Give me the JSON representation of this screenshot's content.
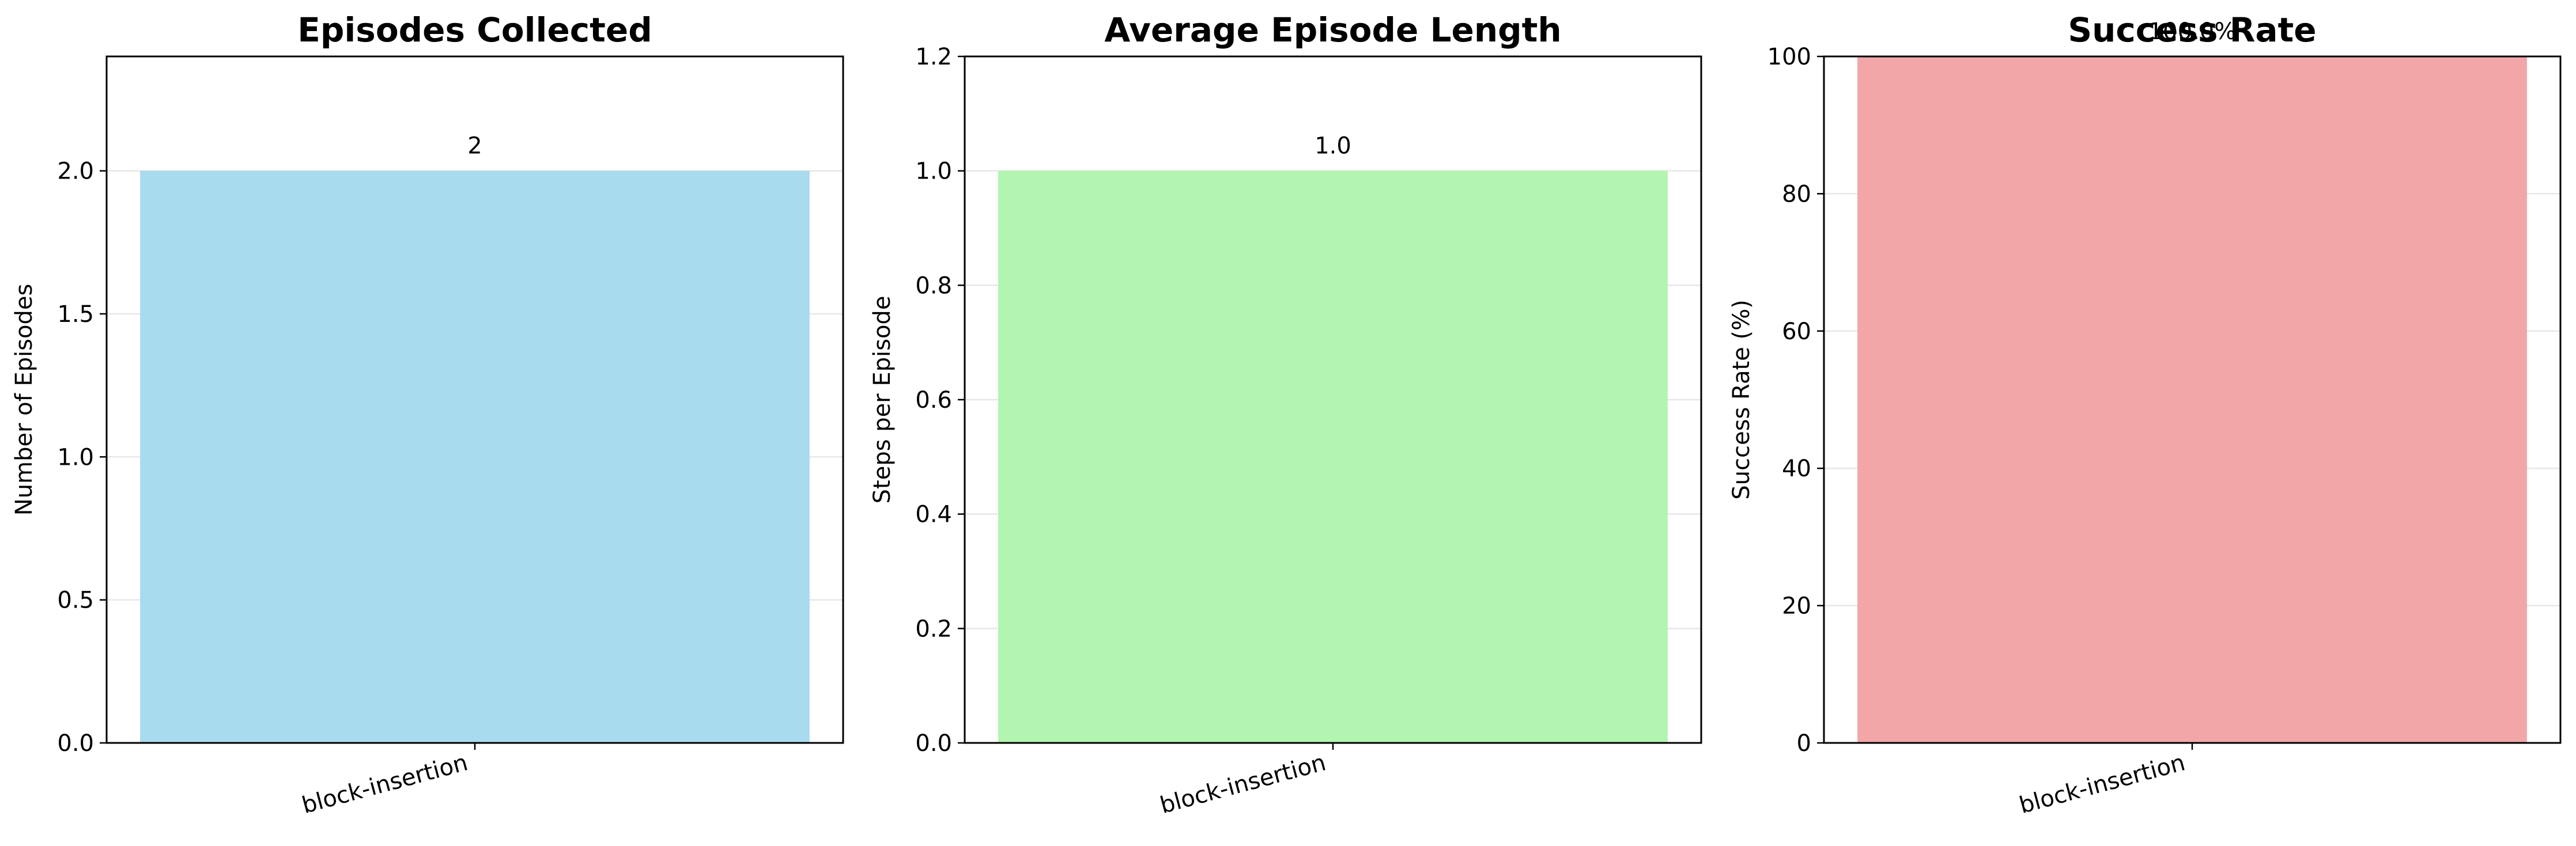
{
  "chart_data": [
    {
      "type": "bar",
      "title": "Episodes Collected",
      "xlabel": "",
      "ylabel": "Number of Episodes",
      "categories": [
        "block-insertion"
      ],
      "values": [
        2
      ],
      "data_labels": [
        "2"
      ],
      "ylim": [
        0,
        2.4
      ],
      "yticks": [
        0.0,
        0.5,
        1.0,
        1.5,
        2.0
      ],
      "ytick_labels": [
        "0.0",
        "0.5",
        "1.0",
        "1.5",
        "2.0"
      ],
      "color": "#a8dbee",
      "grid": true
    },
    {
      "type": "bar",
      "title": "Average Episode Length",
      "xlabel": "",
      "ylabel": "Steps per Episode",
      "categories": [
        "block-insertion"
      ],
      "values": [
        1.0
      ],
      "data_labels": [
        "1.0"
      ],
      "ylim": [
        0,
        1.2
      ],
      "yticks": [
        0.0,
        0.2,
        0.4,
        0.6,
        0.8,
        1.0,
        1.2
      ],
      "ytick_labels": [
        "0.0",
        "0.2",
        "0.4",
        "0.6",
        "0.8",
        "1.0",
        "1.2"
      ],
      "color": "#b2f5b0",
      "grid": true
    },
    {
      "type": "bar",
      "title": "Success Rate",
      "xlabel": "",
      "ylabel": "Success Rate (%)",
      "categories": [
        "block-insertion"
      ],
      "values": [
        100.0
      ],
      "data_labels": [
        "100.0%"
      ],
      "ylim": [
        0,
        100
      ],
      "yticks": [
        0,
        20,
        40,
        60,
        80,
        100
      ],
      "ytick_labels": [
        "0",
        "20",
        "40",
        "60",
        "80",
        "100"
      ],
      "color": "#f2a6a8",
      "grid": true
    }
  ]
}
